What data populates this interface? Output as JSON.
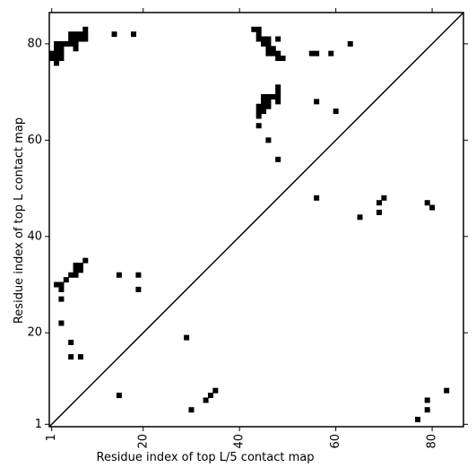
{
  "chart_data": {
    "type": "scatter",
    "xlabel": "Residue index of top L/5 contact map",
    "ylabel": "Residue index of top L contact map",
    "xlim": [
      0.5,
      86.5
    ],
    "ylim": [
      0.5,
      86.5
    ],
    "xticks": [
      1,
      20,
      40,
      60,
      80
    ],
    "yticks": [
      1,
      20,
      40,
      60,
      80
    ],
    "color": "#000000",
    "diagonal": true,
    "x": [
      8,
      5,
      6,
      7,
      8,
      5,
      6,
      7,
      8,
      2,
      3,
      4,
      5,
      6,
      2,
      3,
      6,
      1,
      2,
      3,
      1,
      2,
      3,
      2,
      14,
      18,
      43,
      44,
      44,
      44,
      45,
      46,
      48,
      45,
      46,
      46,
      47,
      46,
      47,
      48,
      48,
      49,
      55,
      56,
      59,
      63,
      48,
      48,
      45,
      46,
      47,
      48,
      45,
      46,
      48,
      44,
      45,
      46,
      44,
      45,
      44,
      56,
      60,
      44,
      46,
      48,
      15,
      30,
      33,
      34,
      35,
      29,
      5,
      5,
      7,
      3,
      3,
      3,
      2,
      3,
      4,
      5,
      6,
      6,
      7,
      7,
      6,
      8,
      15,
      19,
      19,
      56,
      65,
      69,
      69,
      70,
      79,
      80,
      79,
      79,
      77,
      83
    ],
    "y": [
      83,
      82,
      82,
      82,
      82,
      81,
      81,
      81,
      81,
      80,
      80,
      80,
      80,
      80,
      79,
      79,
      79,
      78,
      78,
      78,
      77,
      77,
      77,
      76,
      82,
      82,
      83,
      83,
      82,
      81,
      81,
      81,
      81,
      80,
      80,
      79,
      79,
      78,
      78,
      78,
      77,
      77,
      78,
      78,
      78,
      80,
      71,
      70,
      69,
      69,
      69,
      69,
      68,
      68,
      68,
      67,
      67,
      67,
      66,
      66,
      65,
      68,
      66,
      63,
      60,
      56,
      7,
      4,
      6,
      7,
      8,
      19,
      18,
      15,
      15,
      22,
      27,
      29,
      30,
      30,
      31,
      32,
      32,
      33,
      33,
      34,
      34,
      35,
      32,
      32,
      29,
      48,
      44,
      45,
      47,
      48,
      47,
      46,
      6,
      4,
      2,
      8
    ]
  }
}
